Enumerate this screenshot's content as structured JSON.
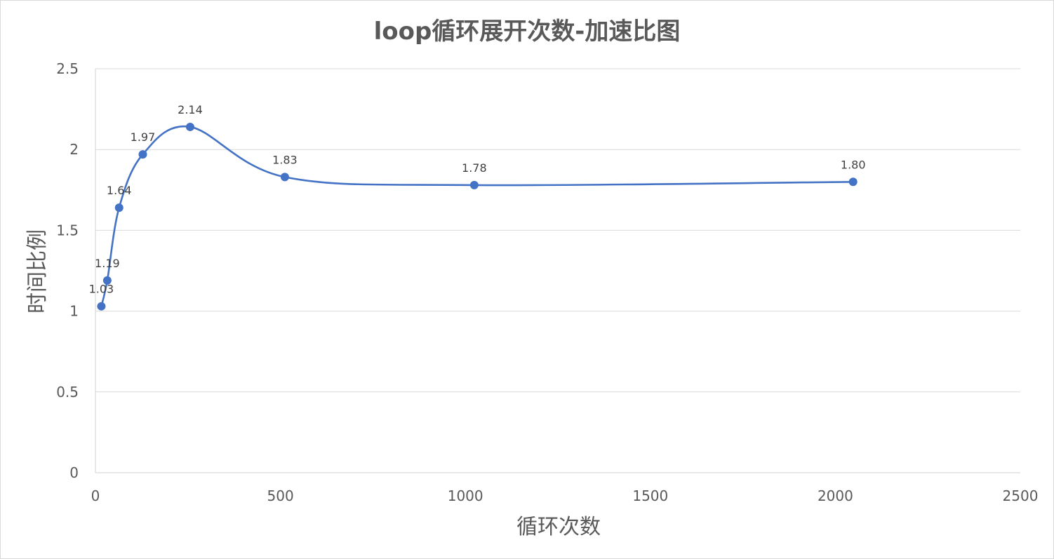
{
  "chart_data": {
    "type": "scatter",
    "title": "loop循环展开次数-加速比图",
    "xlabel": "循环次数",
    "ylabel": "时间比例",
    "xlim": [
      0,
      2500
    ],
    "ylim": [
      0,
      2.5
    ],
    "x_ticks": [
      "0",
      "500",
      "1000",
      "1500",
      "2000",
      "2500"
    ],
    "y_ticks": [
      "0",
      "0.5",
      "1",
      "1.5",
      "2",
      "2.5"
    ],
    "grid": "horizontal",
    "smooth": true,
    "markers": true,
    "series": [
      {
        "color": "#4472c4",
        "points": [
          {
            "x": 16,
            "y": 1.03,
            "label": "1.03"
          },
          {
            "x": 32,
            "y": 1.19,
            "label": "1.19"
          },
          {
            "x": 64,
            "y": 1.64,
            "label": "1.64"
          },
          {
            "x": 128,
            "y": 1.97,
            "label": "1.97"
          },
          {
            "x": 256,
            "y": 2.14,
            "label": "2.14"
          },
          {
            "x": 512,
            "y": 1.83,
            "label": "1.83"
          },
          {
            "x": 1024,
            "y": 1.78,
            "label": "1.78"
          },
          {
            "x": 2048,
            "y": 1.8,
            "label": "1.80"
          }
        ]
      }
    ]
  }
}
